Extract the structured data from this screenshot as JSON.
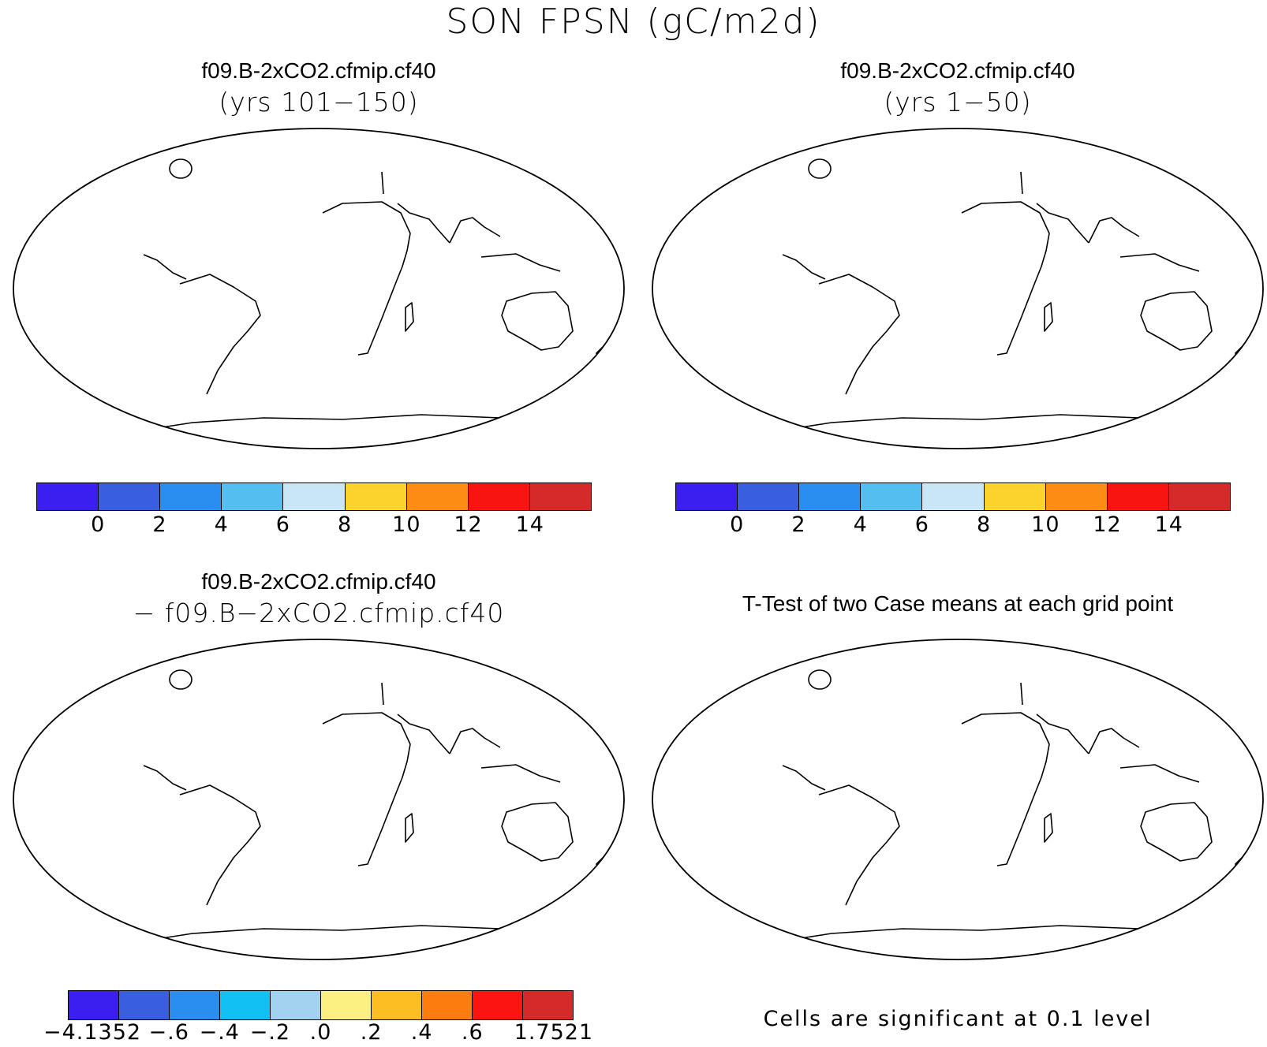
{
  "title": "SON FPSN (gC/m2d)",
  "panels": {
    "top_left": {
      "title": "f09.B-2xCO2.cfmip.cf40",
      "subtitle": "(yrs 101−150)"
    },
    "top_right": {
      "title": "f09.B-2xCO2.cfmip.cf40",
      "subtitle": "(yrs 1−50)"
    },
    "bottom_left": {
      "title": "f09.B-2xCO2.cfmip.cf40",
      "subtitle": "− f09.B−2xCO2.cfmip.cf40"
    },
    "bottom_right": {
      "title": "T-Test of two Case means at each grid point",
      "note": "Cells are significant at 0.1 level"
    }
  },
  "colorbars": {
    "absolute": {
      "colors": [
        "#3a1ff0",
        "#3a5ee0",
        "#2a8ef0",
        "#55bef0",
        "#c8e6f5",
        "#fcd22c",
        "#fc8c14",
        "#f81410",
        "#d42a2a"
      ],
      "labels": [
        "0",
        "2",
        "4",
        "6",
        "8",
        "10",
        "12",
        "14"
      ]
    },
    "difference": {
      "colors": [
        "#3a1ff0",
        "#3a5ee0",
        "#2a8ef0",
        "#12c0f4",
        "#a2d2f0",
        "#fcf082",
        "#fcbe22",
        "#fc7c10",
        "#fc1410",
        "#d42a2a"
      ],
      "labels": [
        "−4.1352",
        "−.6",
        "−.4",
        "−.2",
        ".0",
        ".2",
        ".4",
        ".6",
        "1.7521"
      ]
    }
  },
  "colors": {
    "ocean": "#ffffff",
    "significant": "#ff0000",
    "coast": "#000000"
  }
}
